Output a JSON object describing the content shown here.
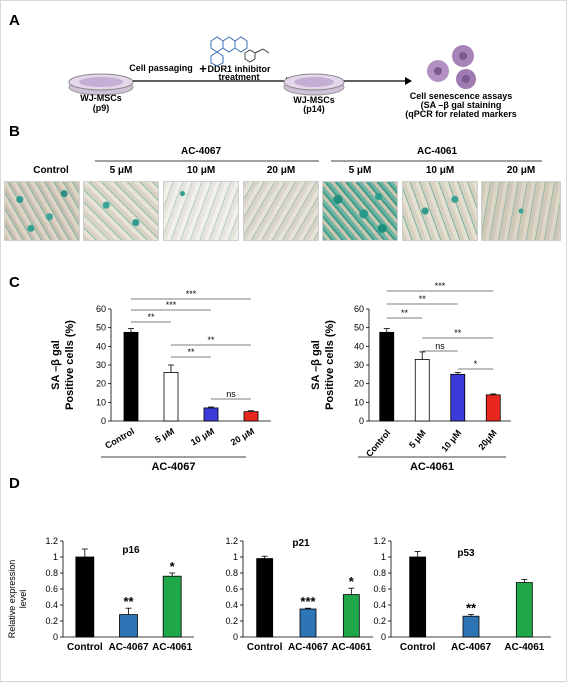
{
  "panels": {
    "a": "A",
    "b": "B",
    "c": "C",
    "d": "D"
  },
  "schematic": {
    "dish1_label": "WJ-MSCs",
    "dish1_sub": "(p9)",
    "step1": "Cell passaging",
    "plus": "+",
    "step2_line1": "DDR1 inhibitor",
    "step2_line2": "treatment",
    "dish2_label": "WJ-MSCs",
    "dish2_sub": "(p14)",
    "assay_line1": "Cell senescence assays",
    "assay_line2": "(SA –β gal  staining",
    "assay_line3": "(qPCR for related markers"
  },
  "micrographs": {
    "control": "Control",
    "group1": "AC-4067",
    "group2": "AC-4061",
    "doses": [
      "5 μM",
      "10 μM",
      "20 μM"
    ]
  },
  "chart_data": [
    {
      "type": "bar",
      "panel": "C",
      "categories": [
        "Control",
        "5 μM",
        "10 μM",
        "20 μM"
      ],
      "values": [
        47.5,
        26,
        7,
        5
      ],
      "errors": [
        2,
        4,
        0.5,
        0.5
      ],
      "colors": [
        "#000000",
        "#ffffff",
        "#3b3bd9",
        "#e8281e"
      ],
      "ylabel": "SA –β gal Positive cells (%)",
      "ylim": [
        0,
        60
      ],
      "yticks": [
        0,
        10,
        20,
        30,
        40,
        50,
        60
      ],
      "group_label": "AC-4067",
      "significance": [
        {
          "from": 0,
          "to": 1,
          "label": "**"
        },
        {
          "from": 0,
          "to": 2,
          "label": "***"
        },
        {
          "from": 0,
          "to": 3,
          "label": "***"
        },
        {
          "from": 1,
          "to": 2,
          "label": "**"
        },
        {
          "from": 1,
          "to": 3,
          "label": "**"
        },
        {
          "from": 2,
          "to": 3,
          "label": "ns"
        }
      ]
    },
    {
      "type": "bar",
      "panel": "C",
      "categories": [
        "Control",
        "5 μM",
        "10 μM",
        "20μM"
      ],
      "values": [
        47.5,
        33,
        25,
        14
      ],
      "errors": [
        2,
        4,
        1,
        0.5
      ],
      "colors": [
        "#000000",
        "#ffffff",
        "#3b3bd9",
        "#e8281e"
      ],
      "ylabel": "SA –β gal Positive cells (%)",
      "ylim": [
        0,
        60
      ],
      "yticks": [
        0,
        10,
        20,
        30,
        40,
        50,
        60
      ],
      "group_label": "AC-4061",
      "significance": [
        {
          "from": 0,
          "to": 1,
          "label": "**"
        },
        {
          "from": 0,
          "to": 2,
          "label": "**"
        },
        {
          "from": 0,
          "to": 3,
          "label": "***"
        },
        {
          "from": 1,
          "to": 2,
          "label": "ns"
        },
        {
          "from": 1,
          "to": 3,
          "label": "**"
        },
        {
          "from": 2,
          "to": 3,
          "label": "*"
        }
      ]
    },
    {
      "type": "bar",
      "panel": "D",
      "title": "p16",
      "categories": [
        "Control",
        "AC-4067",
        "AC-4061"
      ],
      "values": [
        1.0,
        0.28,
        0.76
      ],
      "errors": [
        0.1,
        0.08,
        0.04
      ],
      "colors": [
        "#000000",
        "#2e75b6",
        "#1fa84a"
      ],
      "ylabel": "Relative expression level",
      "ylim": [
        0,
        1.2
      ],
      "yticks": [
        0,
        0.2,
        0.4,
        0.6,
        0.8,
        1,
        1.2
      ],
      "stars": [
        "",
        "**",
        "*"
      ]
    },
    {
      "type": "bar",
      "panel": "D",
      "title": "p21",
      "categories": [
        "Control",
        "AC-4067",
        "AC-4061"
      ],
      "values": [
        0.98,
        0.35,
        0.53
      ],
      "errors": [
        0.03,
        0.01,
        0.08
      ],
      "colors": [
        "#000000",
        "#2e75b6",
        "#1fa84a"
      ],
      "ylim": [
        0,
        1.2
      ],
      "yticks": [
        0,
        0.2,
        0.4,
        0.6,
        0.8,
        1,
        1.2
      ],
      "stars": [
        "",
        "***",
        "*"
      ]
    },
    {
      "type": "bar",
      "panel": "D",
      "title": "p53",
      "categories": [
        "Control",
        "AC-4067",
        "AC-4061"
      ],
      "values": [
        1.0,
        0.26,
        0.68
      ],
      "errors": [
        0.07,
        0.02,
        0.04
      ],
      "colors": [
        "#000000",
        "#2e75b6",
        "#1fa84a"
      ],
      "ylim": [
        0,
        1.2
      ],
      "yticks": [
        0,
        0.2,
        0.4,
        0.6,
        0.8,
        1,
        1.2
      ],
      "stars": [
        "",
        "**",
        ""
      ]
    }
  ]
}
